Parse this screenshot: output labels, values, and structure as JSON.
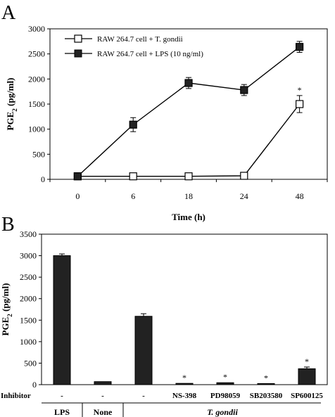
{
  "chart_data": [
    {
      "panel": "A",
      "type": "line",
      "x": [
        "0",
        "6",
        "18",
        "24",
        "48"
      ],
      "xlabel": "Time (h)",
      "ylabel": "PGE2 (pg/ml)",
      "ylim": [
        0,
        3000
      ],
      "yticks": [
        "0",
        "500",
        "1000",
        "1500",
        "2000",
        "2500",
        "3000"
      ],
      "series": [
        {
          "name": "RAW 264.7 cell + T. gondii",
          "marker": "open-square",
          "values": [
            60,
            60,
            60,
            70,
            1500
          ],
          "errors": [
            0,
            0,
            0,
            0,
            170
          ],
          "star": [
            false,
            false,
            false,
            false,
            true
          ]
        },
        {
          "name": "RAW 264.7 cell + LPS (10 ng/ml)",
          "marker": "filled-square",
          "values": [
            60,
            1090,
            1920,
            1780,
            2640
          ],
          "errors": [
            0,
            140,
            110,
            110,
            110
          ],
          "star": [
            false,
            false,
            false,
            false,
            false
          ]
        }
      ],
      "star_symbol": "*"
    },
    {
      "panel": "B",
      "type": "bar",
      "inhibitor_label": "Inhibitor",
      "categories": [
        "-",
        "-",
        "-",
        "NS-398",
        "PD98059",
        "SB203580",
        "SP600125"
      ],
      "values": [
        3000,
        70,
        1590,
        30,
        45,
        25,
        370
      ],
      "errors": [
        40,
        0,
        60,
        0,
        0,
        0,
        40
      ],
      "star": [
        false,
        false,
        false,
        true,
        true,
        true,
        true
      ],
      "star_symbol": "*",
      "ylabel": "PGE2 (pg/ml)",
      "ylim": [
        0,
        3500
      ],
      "yticks": [
        "0",
        "500",
        "1000",
        "1500",
        "2000",
        "2500",
        "3000",
        "3500"
      ],
      "groups": [
        "LPS",
        "None",
        "T. gondii"
      ]
    }
  ]
}
